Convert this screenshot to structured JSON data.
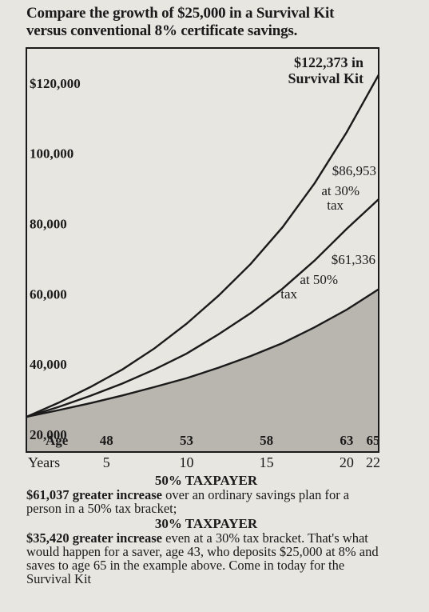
{
  "heading": {
    "line1": "Compare the growth of $25,000 in a Survival Kit",
    "line2": "versus conventional 8% certificate savings."
  },
  "chart_data": {
    "type": "line",
    "title": "",
    "xlabel": "Years",
    "ylabel": "",
    "xlim": [
      0,
      22
    ],
    "ylim": [
      15000,
      130000
    ],
    "grid": false,
    "y_ticks": [
      {
        "value": 120000,
        "label": "$120,000"
      },
      {
        "value": 100000,
        "label": "100,000"
      },
      {
        "value": 80000,
        "label": "80,000"
      },
      {
        "value": 60000,
        "label": "60,000"
      },
      {
        "value": 40000,
        "label": "40,000"
      },
      {
        "value": 20000,
        "label": "20,000"
      }
    ],
    "age_row": {
      "title": "Age",
      "ticks": [
        {
          "x": 5,
          "label": "48"
        },
        {
          "x": 10,
          "label": "53"
        },
        {
          "x": 15,
          "label": "58"
        },
        {
          "x": 20,
          "label": "63"
        },
        {
          "x": 22,
          "label": "65"
        }
      ]
    },
    "years_row": {
      "title": "Years",
      "ticks": [
        {
          "x": 5,
          "label": "5"
        },
        {
          "x": 10,
          "label": "10"
        },
        {
          "x": 15,
          "label": "15"
        },
        {
          "x": 20,
          "label": "20"
        },
        {
          "x": 22,
          "label": "22"
        }
      ]
    },
    "series": [
      {
        "name": "Survival Kit",
        "x": [
          0,
          2,
          4,
          6,
          8,
          10,
          12,
          14,
          16,
          18,
          20,
          22
        ],
        "values": [
          25000,
          29000,
          33500,
          38500,
          44500,
          51500,
          59500,
          68500,
          79000,
          91500,
          106000,
          122373
        ],
        "end_label": [
          "$122,373 in",
          "Survival Kit"
        ]
      },
      {
        "name": "at 30% tax",
        "x": [
          0,
          2,
          4,
          6,
          8,
          10,
          12,
          14,
          16,
          18,
          20,
          22
        ],
        "values": [
          25000,
          27800,
          31000,
          34500,
          38500,
          43000,
          48500,
          54500,
          61500,
          69500,
          78500,
          86953
        ],
        "end_label": [
          "$86,953",
          "at 30%",
          "tax"
        ]
      },
      {
        "name": "at 50% tax",
        "x": [
          0,
          2,
          4,
          6,
          8,
          10,
          12,
          14,
          16,
          18,
          20,
          22
        ],
        "values": [
          25000,
          26900,
          28900,
          31100,
          33500,
          36000,
          39000,
          42300,
          46000,
          50500,
          55500,
          61336
        ],
        "end_label": [
          "$61,336",
          "at 50%",
          "tax"
        ]
      }
    ]
  },
  "notes": [
    {
      "title": "50% TAXPAYER",
      "bold_text": "$61,037 greater increase",
      "text": " over an ordinary savings plan for a person in a 50% tax bracket;"
    },
    {
      "title": "30% TAXPAYER",
      "bold_text": "$35,420 greater increase",
      "text": " even at a 30% tax bracket. That's what would happen for a saver, age 43, who deposits $25,000 at 8% and saves to age 65 in the example above. Come in today for the Survival Kit"
    }
  ],
  "colors": {
    "ink": "#1a1a1a",
    "paper": "#e8e6e1",
    "shade": "#b9b6b0"
  }
}
